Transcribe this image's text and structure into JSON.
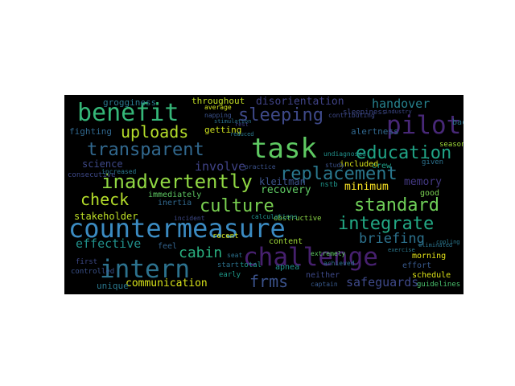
{
  "background": "#000000",
  "colormap": "viridis",
  "words": [
    {
      "text": "countermeasure",
      "color": "#3b8bc2"
    },
    {
      "text": "challenge",
      "color": "#46206e"
    },
    {
      "text": "task",
      "color": "#5ec962"
    },
    {
      "text": "intern",
      "color": "#2c728e"
    },
    {
      "text": "benefit",
      "color": "#35b779"
    },
    {
      "text": "pilot",
      "color": "#482878"
    },
    {
      "text": "inadvertently",
      "color": "#90d743"
    },
    {
      "text": "sleeping",
      "color": "#3e4989"
    },
    {
      "text": "transparent",
      "color": "#31688e"
    },
    {
      "text": "education",
      "color": "#20a486"
    },
    {
      "text": "replacement",
      "color": "#2a788e"
    },
    {
      "text": "culture",
      "color": "#7ad151"
    },
    {
      "text": "standard",
      "color": "#6ece58"
    },
    {
      "text": "integrate",
      "color": "#22a884"
    },
    {
      "text": "check",
      "color": "#b5de2b"
    },
    {
      "text": "uploads",
      "color": "#b5de2b"
    },
    {
      "text": "frms",
      "color": "#3b528b"
    },
    {
      "text": "cabin",
      "color": "#29af7f"
    },
    {
      "text": "briefing",
      "color": "#2c728e"
    },
    {
      "text": "handover",
      "color": "#26828e"
    },
    {
      "text": "disorientation",
      "color": "#404387"
    },
    {
      "text": "involve",
      "color": "#404387"
    },
    {
      "text": "effective",
      "color": "#21918c"
    },
    {
      "text": "recovery",
      "color": "#5ec962"
    },
    {
      "text": "safeguards",
      "color": "#3e4989"
    },
    {
      "text": "communication",
      "color": "#d8e219"
    },
    {
      "text": "kleitman",
      "color": "#3b528b"
    },
    {
      "text": "memory",
      "color": "#443983"
    },
    {
      "text": "minimum",
      "color": "#fde725"
    },
    {
      "text": "stakeholder",
      "color": "#bddf26"
    },
    {
      "text": "science",
      "color": "#3e4989"
    },
    {
      "text": "grogginess",
      "color": "#2a788e"
    },
    {
      "text": "throughout",
      "color": "#c2df23"
    },
    {
      "text": "getting",
      "color": "#cde11d"
    },
    {
      "text": "fighting",
      "color": "#31688e"
    },
    {
      "text": "immediately",
      "color": "#5ec962"
    },
    {
      "text": "inertia",
      "color": "#31688e"
    },
    {
      "text": "alertness",
      "color": "#31688e"
    },
    {
      "text": "feel",
      "color": "#33638d"
    },
    {
      "text": "content",
      "color": "#a0da39"
    },
    {
      "text": "morning",
      "color": "#e5e419"
    },
    {
      "text": "unique",
      "color": "#2a788e"
    },
    {
      "text": "crew",
      "color": "#1fa088"
    },
    {
      "text": "included",
      "color": "#d8e219"
    },
    {
      "text": "early",
      "color": "#1e9b8a"
    },
    {
      "text": "apnea",
      "color": "#21918c"
    },
    {
      "text": "neither",
      "color": "#3e4989"
    },
    {
      "text": "schedule",
      "color": "#dde318"
    },
    {
      "text": "effort",
      "color": "#38598c"
    },
    {
      "text": "good",
      "color": "#7ad151"
    },
    {
      "text": "consecutive",
      "color": "#3e4989"
    },
    {
      "text": "recent",
      "color": "#d2e21b"
    },
    {
      "text": "start",
      "color": "#2c728e"
    },
    {
      "text": "total",
      "color": "#1f958b"
    },
    {
      "text": "first",
      "color": "#3e4989"
    },
    {
      "text": "controlled",
      "color": "#3b528b"
    },
    {
      "text": "achieved",
      "color": "#2c728e"
    },
    {
      "text": "captain",
      "color": "#38598c"
    },
    {
      "text": "guidelines",
      "color": "#4ac16d"
    },
    {
      "text": "nstb",
      "color": "#1f958b"
    },
    {
      "text": "obstructive",
      "color": "#8bd646"
    },
    {
      "text": "calculations",
      "color": "#21918c"
    },
    {
      "text": "incident",
      "color": "#3e4989"
    },
    {
      "text": "increased",
      "color": "#2a788e"
    },
    {
      "text": "average",
      "color": "#d2e21b"
    },
    {
      "text": "napping",
      "color": "#3b528b"
    },
    {
      "text": "sleepiness",
      "color": "#3e4989"
    },
    {
      "text": "study",
      "color": "#3b528b"
    },
    {
      "text": "undiagnosed",
      "color": "#21918c"
    },
    {
      "text": "contributing",
      "color": "#3e4989"
    },
    {
      "text": "given",
      "color": "#2c728e"
    },
    {
      "text": "back",
      "color": "#2c728e"
    },
    {
      "text": "seat",
      "color": "#2c728e"
    },
    {
      "text": "extremely",
      "color": "#5ec962"
    },
    {
      "text": "practice",
      "color": "#3b528b"
    },
    {
      "text": "eliminated",
      "color": "#2c728e"
    },
    {
      "text": "seasonal",
      "color": "#a0da39"
    },
    {
      "text": "rest",
      "color": "#404387"
    },
    {
      "text": "reduced",
      "color": "#2a788e"
    },
    {
      "text": "exercise",
      "color": "#2a788e"
    },
    {
      "text": "cooling",
      "color": "#2a788e"
    },
    {
      "text": "industry",
      "color": "#3e4989"
    },
    {
      "text": "stimulation",
      "color": "#2c728e"
    }
  ]
}
